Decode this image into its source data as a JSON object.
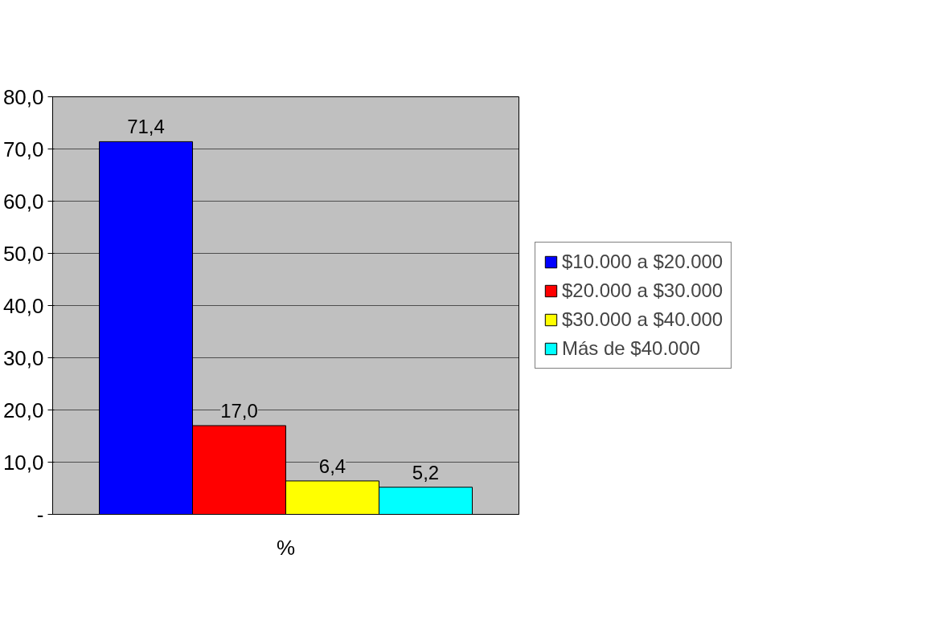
{
  "chart_data": {
    "type": "bar",
    "categories": [
      "%"
    ],
    "xlabel": null,
    "series": [
      {
        "name": "$10.000 a $20.000",
        "color": "#0000ff",
        "values": [
          71.4
        ],
        "value_labels": [
          "71,4"
        ]
      },
      {
        "name": "$20.000 a $30.000",
        "color": "#ff0000",
        "values": [
          17.0
        ],
        "value_labels": [
          "17,0"
        ]
      },
      {
        "name": "$30.000 a $40.000",
        "color": "#ffff00",
        "values": [
          6.4
        ],
        "value_labels": [
          "6,4"
        ]
      },
      {
        "name": "Más de $40.000",
        "color": "#00ffff",
        "values": [
          5.2
        ],
        "value_labels": [
          "5,2"
        ]
      }
    ],
    "ylim": [
      0,
      80
    ],
    "yticks": [
      {
        "value": 0,
        "label": "-"
      },
      {
        "value": 10,
        "label": "10,0"
      },
      {
        "value": 20,
        "label": "20,0"
      },
      {
        "value": 30,
        "label": "30,0"
      },
      {
        "value": 40,
        "label": "40,0"
      },
      {
        "value": 50,
        "label": "50,0"
      },
      {
        "value": 60,
        "label": "60,0"
      },
      {
        "value": 70,
        "label": "70,0"
      },
      {
        "value": 80,
        "label": "80,0"
      }
    ],
    "grid": "y",
    "legend": "right"
  }
}
